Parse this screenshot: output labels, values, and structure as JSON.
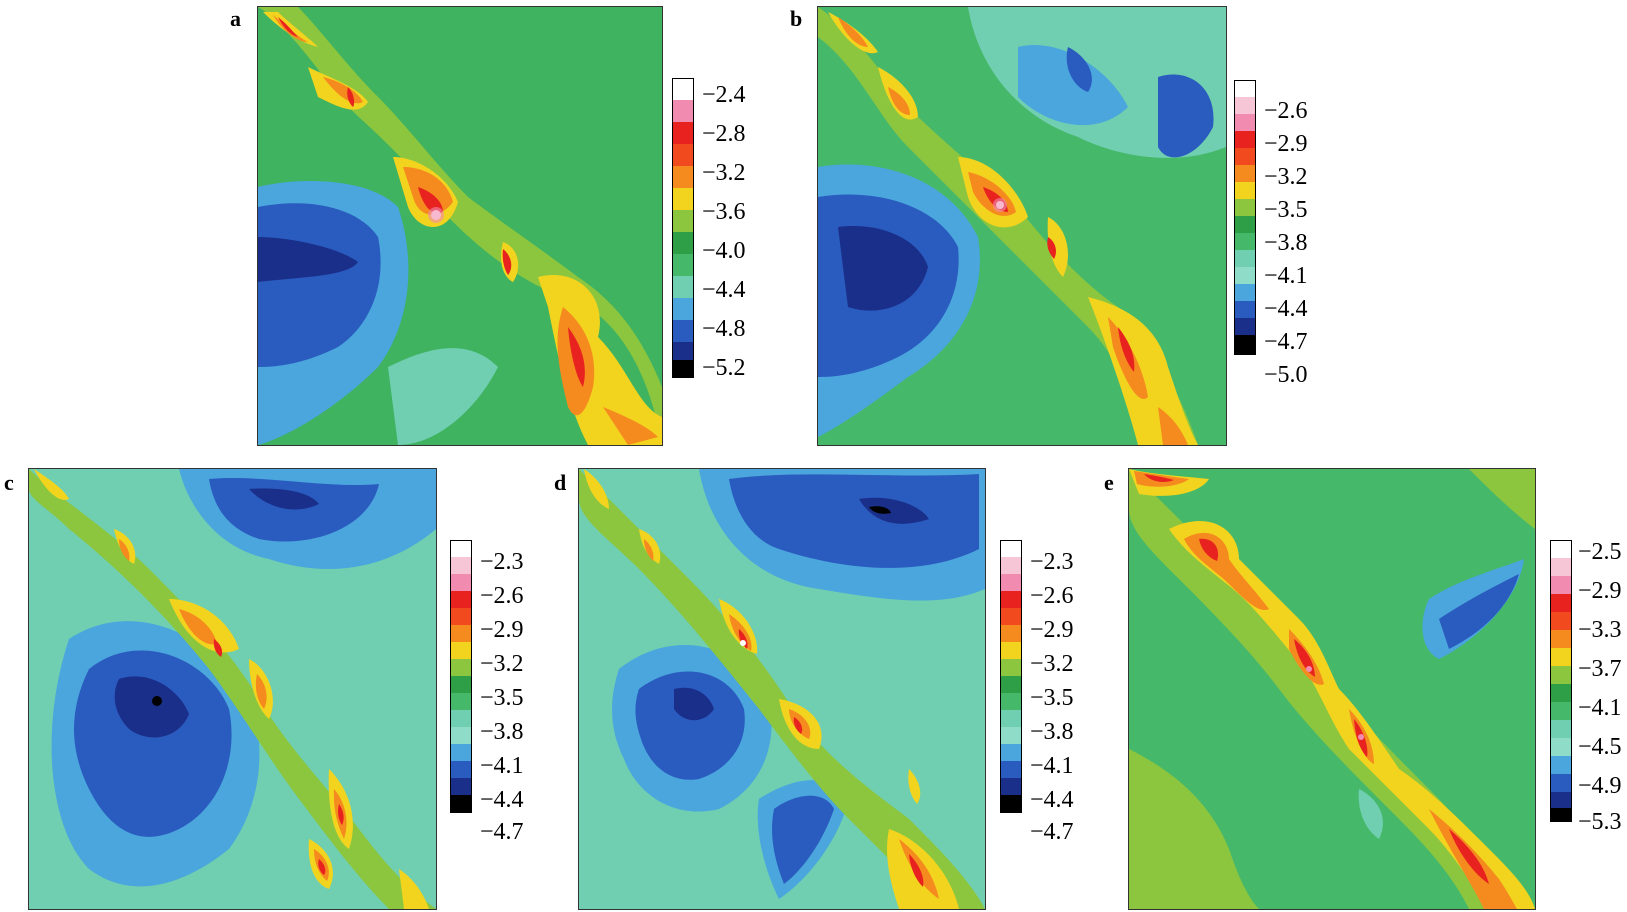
{
  "chart_data": [
    {
      "type": "heatmap",
      "panel": "a",
      "colorbar_ticks": [
        "−2.4",
        "−2.8",
        "−3.2",
        "−3.6",
        "−4.0",
        "−4.4",
        "−4.8",
        "−5.2"
      ],
      "colorbar_range": [
        -5.2,
        -2.4
      ],
      "color_levels": [
        "#000000",
        "#1a2f8a",
        "#2a5bbf",
        "#4aa6dd",
        "#6fcfb0",
        "#46b86a",
        "#2e9e47",
        "#8cc63f",
        "#f2d41f",
        "#f58a1f",
        "#e8231f",
        "#f28bb0",
        "#ffffff"
      ],
      "grid": false
    },
    {
      "type": "heatmap",
      "panel": "b",
      "colorbar_ticks": [
        "−2.6",
        "−2.9",
        "−3.2",
        "−3.5",
        "−3.8",
        "−4.1",
        "−4.4",
        "−4.7",
        "−5.0"
      ],
      "colorbar_range": [
        -5.0,
        -2.6
      ],
      "grid": false
    },
    {
      "type": "heatmap",
      "panel": "c",
      "colorbar_ticks": [
        "−2.3",
        "−2.6",
        "−2.9",
        "−3.2",
        "−3.5",
        "−3.8",
        "−4.1",
        "−4.4",
        "−4.7"
      ],
      "colorbar_range": [
        -4.7,
        -2.3
      ],
      "grid": false
    },
    {
      "type": "heatmap",
      "panel": "d",
      "colorbar_ticks": [
        "−2.3",
        "−2.6",
        "−2.9",
        "−3.2",
        "−3.5",
        "−3.8",
        "−4.1",
        "−4.4",
        "−4.7"
      ],
      "colorbar_range": [
        -4.7,
        -2.3
      ],
      "grid": false
    },
    {
      "type": "heatmap",
      "panel": "e",
      "colorbar_ticks": [
        "−2.5",
        "−2.9",
        "−3.3",
        "−3.7",
        "−4.1",
        "−4.5",
        "−4.9",
        "−5.3"
      ],
      "colorbar_range": [
        -5.3,
        -2.5
      ],
      "grid": false
    }
  ]
}
